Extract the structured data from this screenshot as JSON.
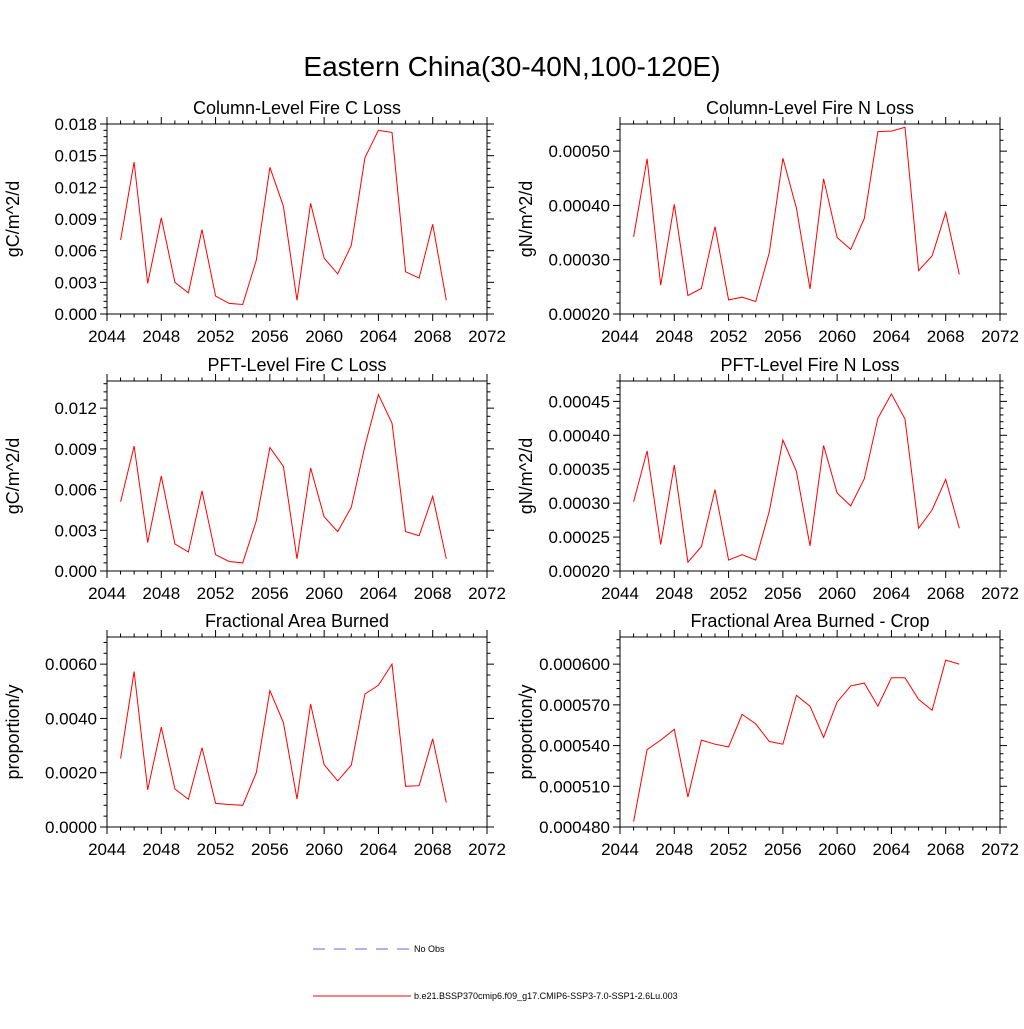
{
  "title": "Eastern China(30-40N,100-120E)",
  "legend": [
    {
      "label": "No Obs",
      "color": "#6a6ad0",
      "style": "dashed"
    },
    {
      "label": "b.e21.BSSP370cmip6.f09_g17.CMIP6-SSP3-7.0-SSP1-2.6Lu.003",
      "color": "#ff0000",
      "style": "solid"
    }
  ],
  "chart_data": [
    {
      "type": "line",
      "title": "Column-Level Fire C Loss",
      "xlabel": "",
      "ylabel": "gC/m^2/d",
      "xlim": [
        2044,
        2072
      ],
      "ylim": [
        0,
        0.018
      ],
      "xticks": [
        "2044",
        "2048",
        "2052",
        "2056",
        "2060",
        "2064",
        "2068",
        "2072"
      ],
      "yticks": [
        "0.000",
        "0.003",
        "0.006",
        "0.009",
        "0.012",
        "0.015",
        "0.018"
      ],
      "x": [
        2045,
        2046,
        2047,
        2048,
        2049,
        2050,
        2051,
        2052,
        2053,
        2054,
        2055,
        2056,
        2057,
        2058,
        2059,
        2060,
        2061,
        2062,
        2063,
        2064,
        2065,
        2066,
        2067,
        2068,
        2069
      ],
      "series": [
        {
          "values": [
            0.007,
            0.0144,
            0.0029,
            0.0091,
            0.003,
            0.002,
            0.008,
            0.0017,
            0.001,
            0.0009,
            0.0051,
            0.0139,
            0.0102,
            0.0013,
            0.0105,
            0.0053,
            0.0038,
            0.0065,
            0.0148,
            0.0174,
            0.0172,
            0.004,
            0.0034,
            0.0085,
            0.0013
          ],
          "color": "#ff0000"
        }
      ]
    },
    {
      "type": "line",
      "title": "Column-Level Fire N Loss",
      "xlabel": "",
      "ylabel": "gN/m^2/d",
      "xlim": [
        2044,
        2072
      ],
      "ylim": [
        0.0002,
        0.00055
      ],
      "xticks": [
        "2044",
        "2048",
        "2052",
        "2056",
        "2060",
        "2064",
        "2068",
        "2072"
      ],
      "yticks": [
        "0.00020",
        "0.00030",
        "0.00040",
        "0.00050"
      ],
      "x": [
        2045,
        2046,
        2047,
        2048,
        2049,
        2050,
        2051,
        2052,
        2053,
        2054,
        2055,
        2056,
        2057,
        2058,
        2059,
        2060,
        2061,
        2062,
        2063,
        2064,
        2065,
        2066,
        2067,
        2068,
        2069
      ],
      "series": [
        {
          "values": [
            0.000342,
            0.000486,
            0.000253,
            0.000402,
            0.000234,
            0.000247,
            0.000361,
            0.000226,
            0.000231,
            0.000223,
            0.000313,
            0.000487,
            0.000395,
            0.000246,
            0.000449,
            0.000341,
            0.000319,
            0.000376,
            0.000536,
            0.000537,
            0.000544,
            0.00028,
            0.000307,
            0.000387,
            0.000273
          ],
          "color": "#ff0000"
        }
      ]
    },
    {
      "type": "line",
      "title": "PFT-Level Fire C Loss",
      "xlabel": "",
      "ylabel": "gC/m^2/d",
      "xlim": [
        2044,
        2072
      ],
      "ylim": [
        0,
        0.014
      ],
      "xticks": [
        "2044",
        "2048",
        "2052",
        "2056",
        "2060",
        "2064",
        "2068",
        "2072"
      ],
      "yticks": [
        "0.000",
        "0.003",
        "0.006",
        "0.009",
        "0.012"
      ],
      "x": [
        2045,
        2046,
        2047,
        2048,
        2049,
        2050,
        2051,
        2052,
        2053,
        2054,
        2055,
        2056,
        2057,
        2058,
        2059,
        2060,
        2061,
        2062,
        2063,
        2064,
        2065,
        2066,
        2067,
        2068,
        2069
      ],
      "series": [
        {
          "values": [
            0.0051,
            0.0092,
            0.0021,
            0.007,
            0.002,
            0.0014,
            0.0059,
            0.0012,
            0.0007,
            0.0006,
            0.0037,
            0.0091,
            0.0077,
            0.0009,
            0.0076,
            0.004,
            0.0029,
            0.0047,
            0.0092,
            0.013,
            0.0109,
            0.0029,
            0.0026,
            0.0055,
            0.0009
          ],
          "color": "#ff0000"
        }
      ]
    },
    {
      "type": "line",
      "title": "PFT-Level Fire N Loss",
      "xlabel": "",
      "ylabel": "gN/m^2/d",
      "xlim": [
        2044,
        2072
      ],
      "ylim": [
        0.0002,
        0.00048
      ],
      "xticks": [
        "2044",
        "2048",
        "2052",
        "2056",
        "2060",
        "2064",
        "2068",
        "2072"
      ],
      "yticks": [
        "0.00020",
        "0.00025",
        "0.00030",
        "0.00035",
        "0.00040",
        "0.00045"
      ],
      "x": [
        2045,
        2046,
        2047,
        2048,
        2049,
        2050,
        2051,
        2052,
        2053,
        2054,
        2055,
        2056,
        2057,
        2058,
        2059,
        2060,
        2061,
        2062,
        2063,
        2064,
        2065,
        2066,
        2067,
        2068,
        2069
      ],
      "series": [
        {
          "values": [
            0.000302,
            0.000377,
            0.000239,
            0.000356,
            0.000213,
            0.000236,
            0.00032,
            0.000216,
            0.000224,
            0.000216,
            0.000288,
            0.000393,
            0.000347,
            0.000237,
            0.000385,
            0.000315,
            0.000296,
            0.000336,
            0.000425,
            0.000461,
            0.000424,
            0.000263,
            0.00029,
            0.000335,
            0.000263
          ],
          "color": "#ff0000"
        }
      ]
    },
    {
      "type": "line",
      "title": "Fractional Area Burned",
      "xlabel": "",
      "ylabel": "proportion/y",
      "xlim": [
        2044,
        2072
      ],
      "ylim": [
        0,
        0.007
      ],
      "xticks": [
        "2044",
        "2048",
        "2052",
        "2056",
        "2060",
        "2064",
        "2068",
        "2072"
      ],
      "yticks": [
        "0.0000",
        "0.0020",
        "0.0040",
        "0.0060"
      ],
      "x": [
        2045,
        2046,
        2047,
        2048,
        2049,
        2050,
        2051,
        2052,
        2053,
        2054,
        2055,
        2056,
        2057,
        2058,
        2059,
        2060,
        2061,
        2062,
        2063,
        2064,
        2065,
        2066,
        2067,
        2068,
        2069
      ],
      "series": [
        {
          "values": [
            0.00252,
            0.00573,
            0.00137,
            0.00368,
            0.0014,
            0.00102,
            0.00292,
            0.00087,
            0.00083,
            0.0008,
            0.002,
            0.00503,
            0.00385,
            0.00103,
            0.00453,
            0.0023,
            0.0017,
            0.00228,
            0.0049,
            0.00522,
            0.006,
            0.0015,
            0.00152,
            0.00325,
            0.0009
          ],
          "color": "#ff0000"
        }
      ]
    },
    {
      "type": "line",
      "title": "Fractional Area Burned - Crop",
      "xlabel": "",
      "ylabel": "proportion/y",
      "xlim": [
        2044,
        2072
      ],
      "ylim": [
        0.00048,
        0.00062
      ],
      "xticks": [
        "2044",
        "2048",
        "2052",
        "2056",
        "2060",
        "2064",
        "2068",
        "2072"
      ],
      "yticks": [
        "0.000480",
        "0.000510",
        "0.000540",
        "0.000570",
        "0.000600"
      ],
      "x": [
        2045,
        2046,
        2047,
        2048,
        2049,
        2050,
        2051,
        2052,
        2053,
        2054,
        2055,
        2056,
        2057,
        2058,
        2059,
        2060,
        2061,
        2062,
        2063,
        2064,
        2065,
        2066,
        2067,
        2068,
        2069
      ],
      "series": [
        {
          "values": [
            0.000484,
            0.000537,
            0.000544,
            0.000552,
            0.000502,
            0.000544,
            0.000541,
            0.000539,
            0.000563,
            0.000556,
            0.000543,
            0.000541,
            0.000577,
            0.000569,
            0.000546,
            0.000572,
            0.000584,
            0.000586,
            0.000569,
            0.00059,
            0.00059,
            0.000574,
            0.000566,
            0.000603,
            0.0006
          ],
          "color": "#ff0000"
        }
      ]
    }
  ]
}
